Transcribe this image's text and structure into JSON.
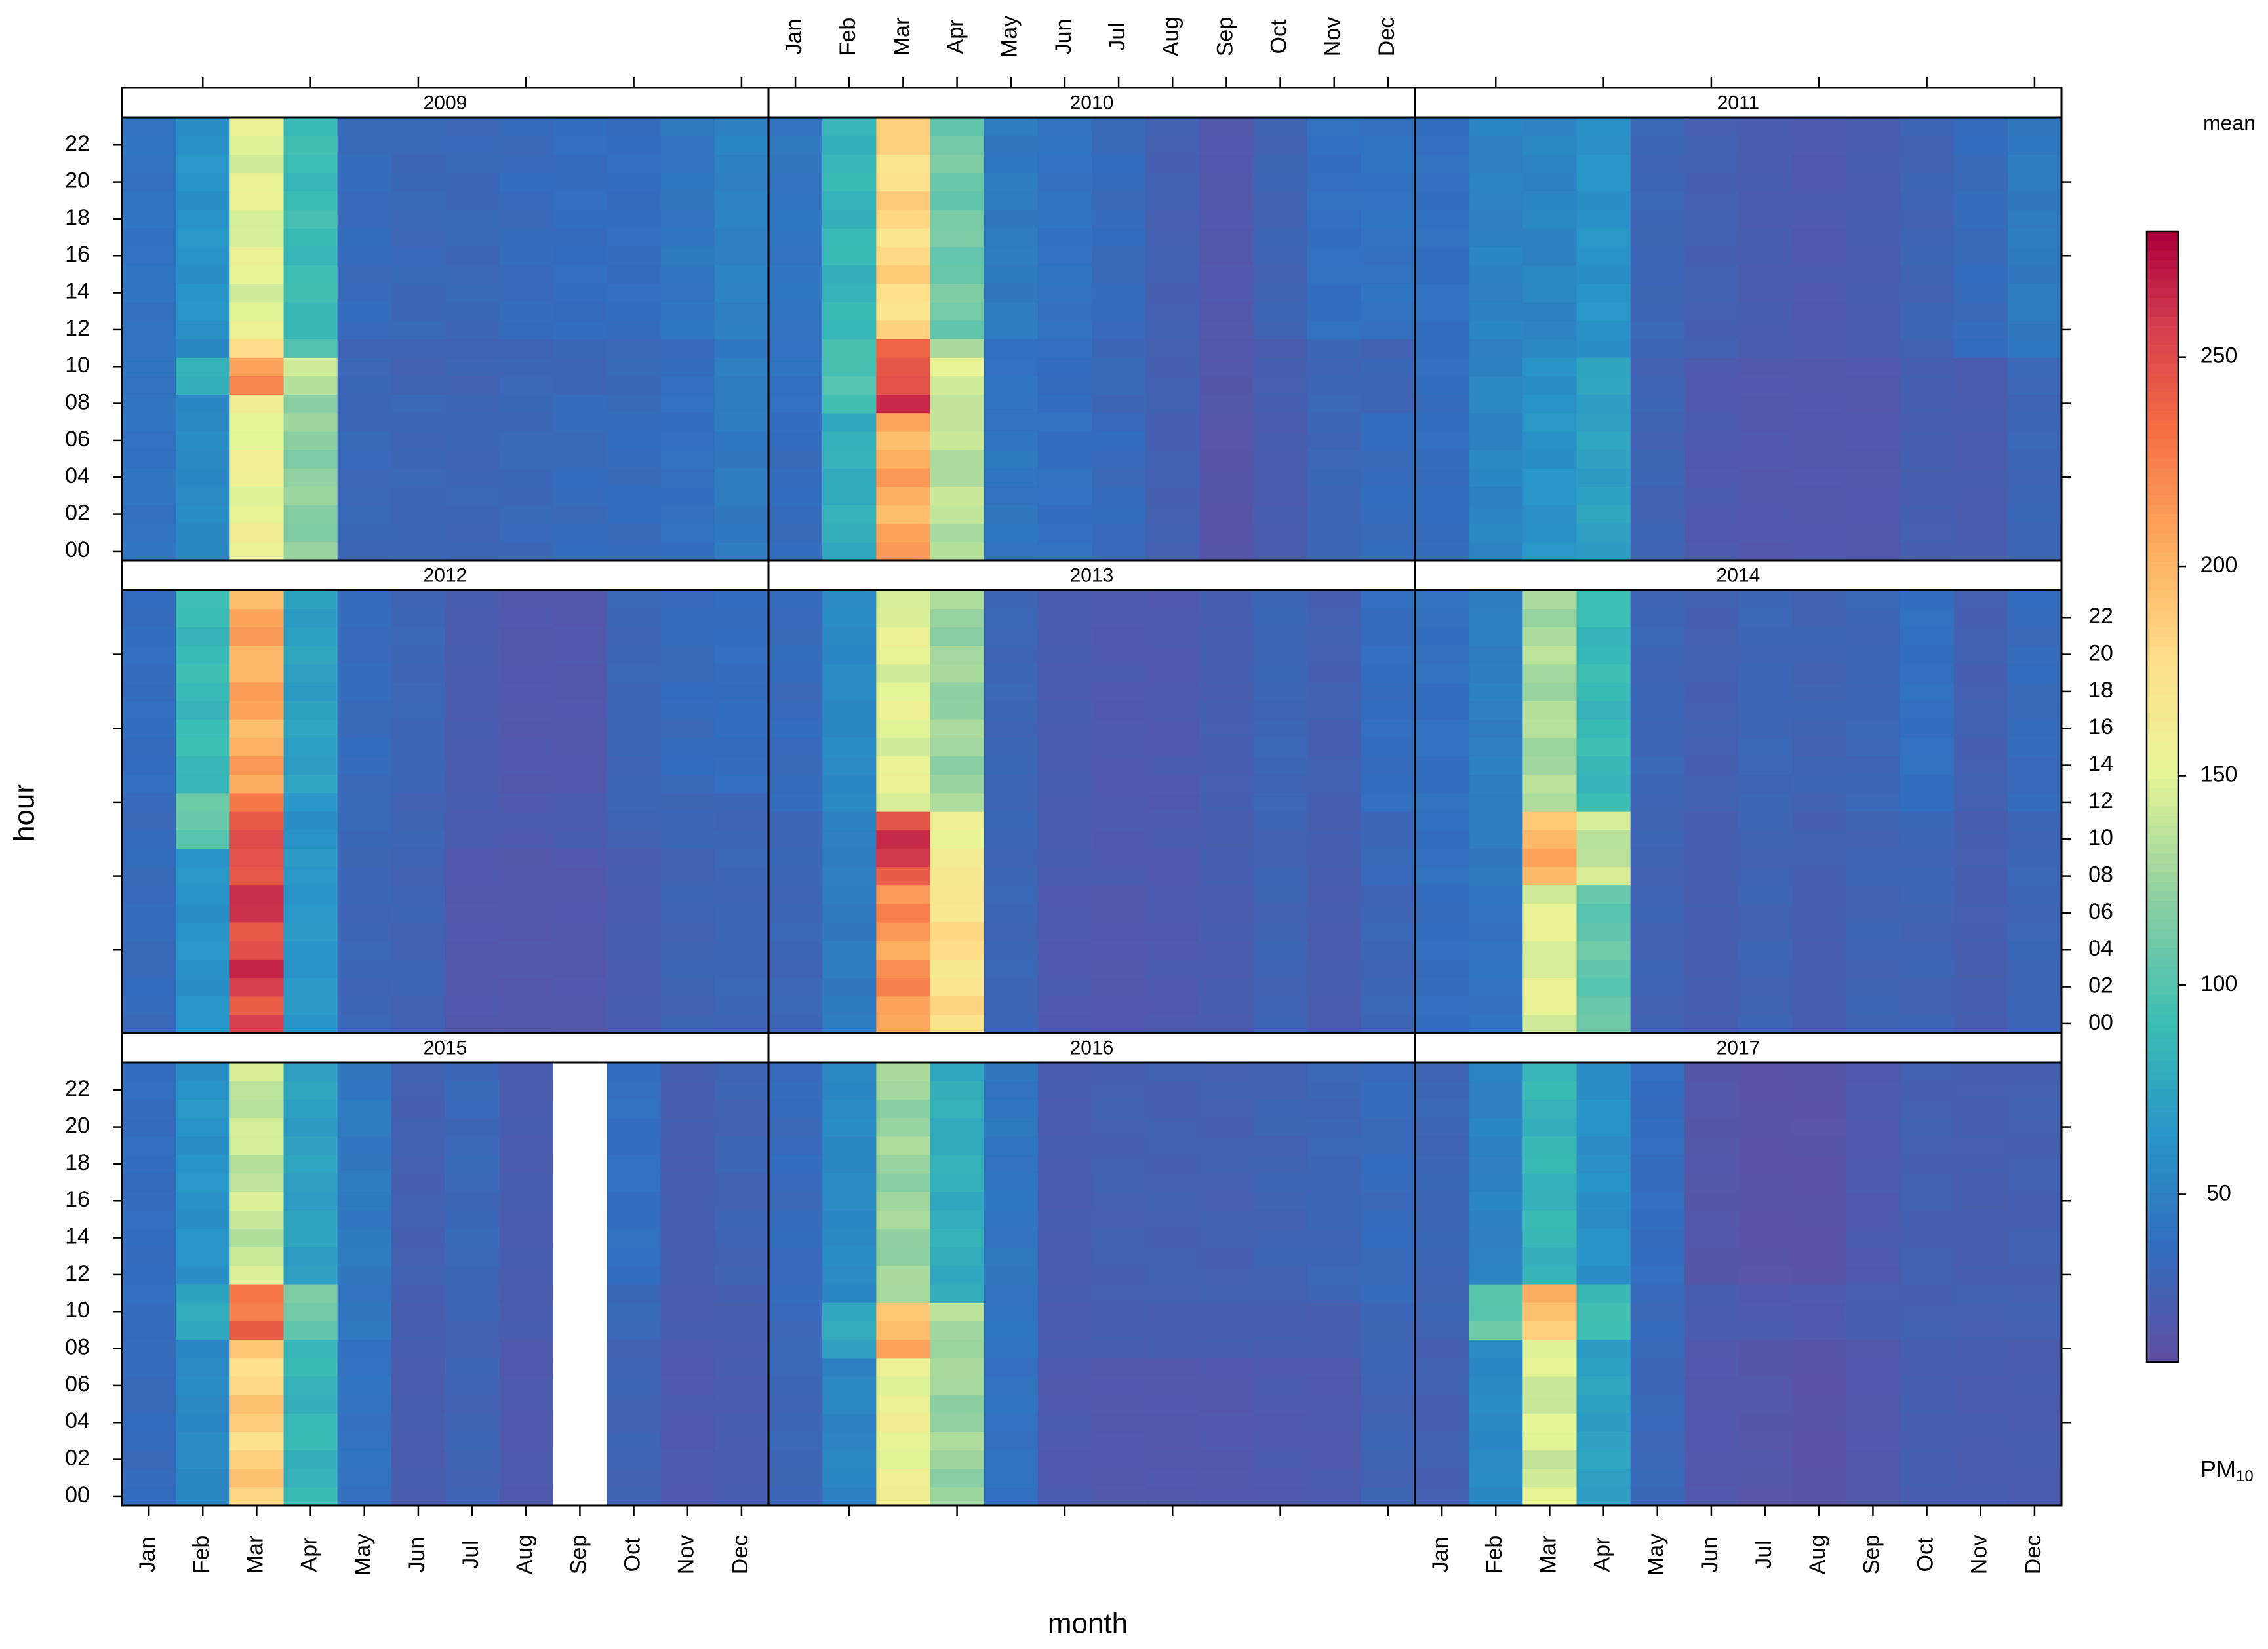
{
  "chart_data": {
    "type": "heatmap",
    "xlabel": "month",
    "ylabel": "hour",
    "legend_title": "mean",
    "legend_unit_main": "PM",
    "legend_unit_sub": "10",
    "months": [
      "Jan",
      "Feb",
      "Mar",
      "Apr",
      "May",
      "Jun",
      "Jul",
      "Aug",
      "Sep",
      "Oct",
      "Nov",
      "Dec"
    ],
    "hour_ticks": [
      "00",
      "02",
      "04",
      "06",
      "08",
      "10",
      "12",
      "14",
      "16",
      "18",
      "20",
      "22"
    ],
    "color_ticks": [
      50,
      100,
      150,
      200,
      250
    ],
    "color_range": [
      10,
      280
    ],
    "value_note": "Cell values are mean PM10 by month and hour, estimated from colour. Each panel row value is applied over its hour range; null = no data.",
    "panels": [
      {
        "year": "2009",
        "bands": [
          [
            0,
            8,
            [
              40,
              55,
              155,
              120,
              32,
              30,
              30,
              32,
              34,
              35,
              38,
              45
            ]
          ],
          [
            9,
            10,
            [
              42,
              80,
              220,
              140,
              30,
              28,
              28,
              30,
              30,
              32,
              36,
              48
            ]
          ],
          [
            11,
            11,
            [
              38,
              55,
              180,
              95,
              30,
              28,
              28,
              30,
              30,
              32,
              34,
              42
            ]
          ],
          [
            12,
            23,
            [
              40,
              62,
              150,
              90,
              34,
              32,
              32,
              34,
              36,
              36,
              42,
              50
            ]
          ]
        ]
      },
      {
        "year": "2010",
        "bands": [
          [
            0,
            7,
            [
              35,
              80,
              205,
              135,
              42,
              38,
              34,
              26,
              15,
              22,
              30,
              35
            ]
          ],
          [
            8,
            10,
            [
              40,
              95,
              255,
              145,
              40,
              36,
              32,
              26,
              16,
              24,
              30,
              30
            ]
          ],
          [
            11,
            11,
            [
              38,
              100,
              230,
              130,
              40,
              36,
              32,
              26,
              17,
              22,
              30,
              26
            ]
          ],
          [
            12,
            23,
            [
              42,
              85,
              180,
              110,
              45,
              40,
              34,
              26,
              18,
              28,
              38,
              40
            ]
          ]
        ]
      },
      {
        "year": "2011",
        "bands": [
          [
            0,
            10,
            [
              36,
              52,
              62,
              72,
              28,
              20,
              18,
              18,
              18,
              24,
              22,
              30
            ]
          ],
          [
            11,
            23,
            [
              38,
              50,
              52,
              62,
              30,
              26,
              22,
              20,
              22,
              28,
              34,
              45
            ]
          ]
        ]
      },
      {
        "year": "2012",
        "bands": [
          [
            0,
            9,
            [
              34,
              62,
              255,
              65,
              30,
              28,
              18,
              17,
              18,
              22,
              28,
              30
            ]
          ],
          [
            10,
            12,
            [
              34,
              105,
              240,
              62,
              32,
              28,
              22,
              20,
              22,
              28,
              30,
              30
            ]
          ],
          [
            13,
            23,
            [
              36,
              88,
              205,
              72,
              34,
              30,
              22,
              18,
              18,
              30,
              34,
              36
            ]
          ]
        ]
      },
      {
        "year": "2013",
        "bands": [
          [
            0,
            7,
            [
              30,
              45,
              215,
              175,
              30,
              20,
              18,
              20,
              22,
              28,
              22,
              30
            ]
          ],
          [
            8,
            11,
            [
              30,
              48,
              255,
              160,
              30,
              22,
              20,
              20,
              24,
              28,
              24,
              32
            ]
          ],
          [
            12,
            23,
            [
              34,
              55,
              150,
              125,
              30,
              22,
              20,
              20,
              24,
              30,
              26,
              36
            ]
          ]
        ]
      },
      {
        "year": "2014",
        "bands": [
          [
            0,
            7,
            [
              36,
              40,
              150,
              105,
              28,
              24,
              28,
              24,
              28,
              28,
              24,
              30
            ]
          ],
          [
            8,
            11,
            [
              38,
              45,
              200,
              140,
              28,
              24,
              28,
              26,
              28,
              30,
              24,
              30
            ]
          ],
          [
            12,
            23,
            [
              38,
              48,
              130,
              88,
              30,
              26,
              30,
              28,
              30,
              38,
              26,
              34
            ]
          ]
        ]
      },
      {
        "year": "2015",
        "bands": [
          [
            0,
            8,
            [
              34,
              55,
              185,
              85,
              40,
              22,
              28,
              20,
              null,
              28,
              20,
              22
            ]
          ],
          [
            9,
            11,
            [
              36,
              75,
              235,
              110,
              42,
              24,
              28,
              22,
              null,
              32,
              22,
              24
            ]
          ],
          [
            12,
            23,
            [
              36,
              62,
              140,
              72,
              44,
              26,
              32,
              22,
              null,
              38,
              24,
              28
            ]
          ]
        ]
      },
      {
        "year": "2016",
        "bands": [
          [
            0,
            7,
            [
              30,
              52,
              155,
              125,
              40,
              20,
              18,
              18,
              18,
              20,
              20,
              28
            ]
          ],
          [
            8,
            10,
            [
              32,
              75,
              200,
              130,
              42,
              22,
              24,
              24,
              24,
              24,
              24,
              30
            ]
          ],
          [
            11,
            23,
            [
              34,
              55,
              125,
              80,
              42,
              22,
              26,
              26,
              26,
              28,
              30,
              34
            ]
          ]
        ]
      },
      {
        "year": "2017",
        "bands": [
          [
            0,
            8,
            [
              26,
              55,
              145,
              72,
              32,
              18,
              16,
              14,
              18,
              24,
              22,
              22
            ]
          ],
          [
            9,
            11,
            [
              28,
              105,
              195,
              90,
              34,
              22,
              20,
              20,
              24,
              26,
              26,
              26
            ]
          ],
          [
            12,
            23,
            [
              30,
              50,
              85,
              60,
              36,
              16,
              14,
              14,
              20,
              26,
              24,
              26
            ]
          ]
        ]
      }
    ]
  }
}
